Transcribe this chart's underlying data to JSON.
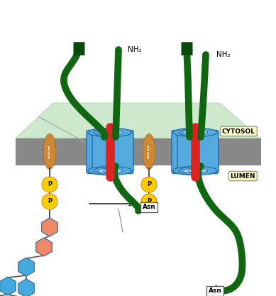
{
  "background": "#ffffff",
  "cytosol_color": "#cde8cd",
  "membrane_color": "#888888",
  "membrane_edge": "#666666",
  "blue_cylinder": "#55aadd",
  "blue_dark": "#2266aa",
  "blue_inner": "#aad4ee",
  "green_protein": "#116611",
  "green_bright": "#228822",
  "red_linker": "#dd2222",
  "dolichol_fill": "#cc8833",
  "dolichol_text": "#ffffff",
  "phosphate_color": "#ffcc00",
  "phosphate_edge": "#cc8800",
  "salmon_sugar": "#ee8866",
  "blue_sugar": "#44aadd",
  "green_sugar": "#88cc33",
  "sugar_edge": "#336688",
  "asn_box_face": "#ffffff",
  "asn_box_edge": "#555555",
  "label_cytosol_bg": "#ffffcc",
  "label_lumen_bg": "#ffffcc",
  "cytosol_label": "CYTOSOL",
  "lumen_label": "LUMEN",
  "nh2_text": "NH₂",
  "asn_text": "Asn"
}
